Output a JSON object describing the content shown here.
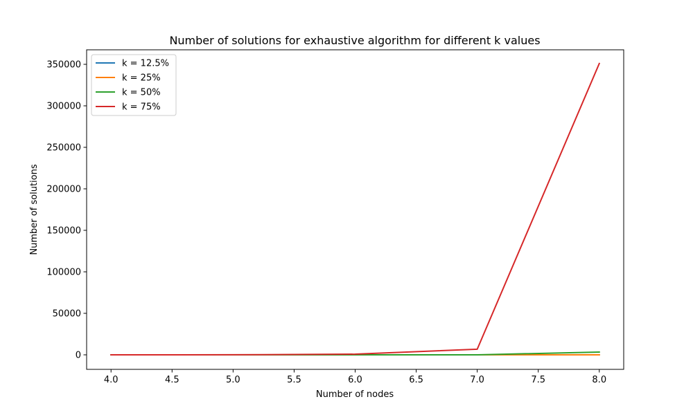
{
  "chart_data": {
    "type": "line",
    "title": "Number of solutions for exhaustive algorithm for different k values",
    "xlabel": "Number of nodes",
    "ylabel": "Number of solutions",
    "x": [
      4,
      5,
      6,
      7,
      8
    ],
    "xlim": [
      3.8,
      8.2
    ],
    "ylim": [
      -17500,
      367500
    ],
    "x_ticks": [
      4.0,
      4.5,
      5.0,
      5.5,
      6.0,
      6.5,
      7.0,
      7.5,
      8.0
    ],
    "x_tick_labels": [
      "4.0",
      "4.5",
      "5.0",
      "5.5",
      "6.0",
      "6.5",
      "7.0",
      "7.5",
      "8.0"
    ],
    "y_ticks": [
      0,
      50000,
      100000,
      150000,
      200000,
      250000,
      300000,
      350000
    ],
    "y_tick_labels": [
      "0",
      "50000",
      "100000",
      "150000",
      "200000",
      "250000",
      "300000",
      "350000"
    ],
    "grid": false,
    "legend_position": "top-left",
    "series": [
      {
        "name": "k = 12.5%",
        "color": "#1f77b4",
        "values": [
          4,
          5,
          6,
          7,
          8
        ]
      },
      {
        "name": "k = 25%",
        "color": "#ff7f0e",
        "values": [
          6,
          10,
          15,
          21,
          28
        ]
      },
      {
        "name": "k = 50%",
        "color": "#2ca02c",
        "values": [
          4,
          10,
          20,
          35,
          3300
        ]
      },
      {
        "name": "k = 75%",
        "color": "#d62728",
        "values": [
          20,
          60,
          800,
          6800,
          351000
        ]
      }
    ]
  }
}
